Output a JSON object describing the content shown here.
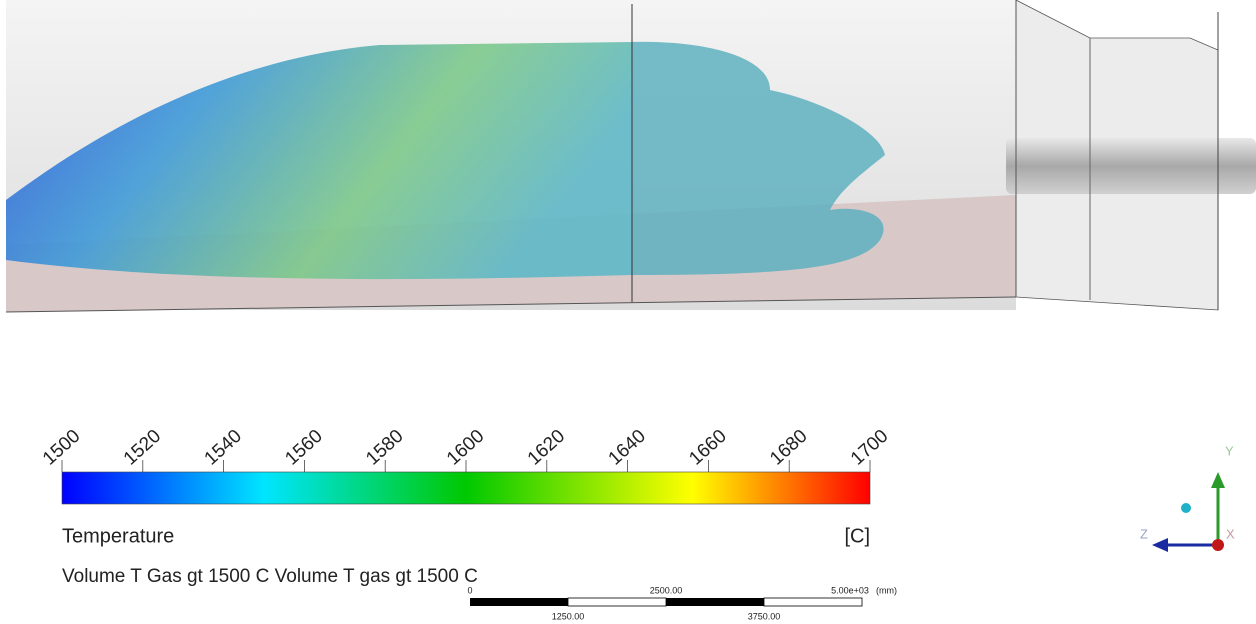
{
  "legend": {
    "ticks": [
      "1500",
      "1520",
      "1540",
      "1560",
      "1580",
      "1600",
      "1620",
      "1640",
      "1660",
      "1680",
      "1700"
    ],
    "title": "Temperature",
    "unit": "[C]",
    "description": "Volume T Gas gt 1500 C Volume T gas gt 1500 C"
  },
  "scale_bar": {
    "top_labels": [
      "0",
      "2500.00",
      "5.00e+03"
    ],
    "unit": "(mm)",
    "bottom_labels": [
      "1250.00",
      "3750.00"
    ]
  },
  "axes_triad": {
    "y": "Y",
    "z": "Z",
    "x": "X"
  }
}
